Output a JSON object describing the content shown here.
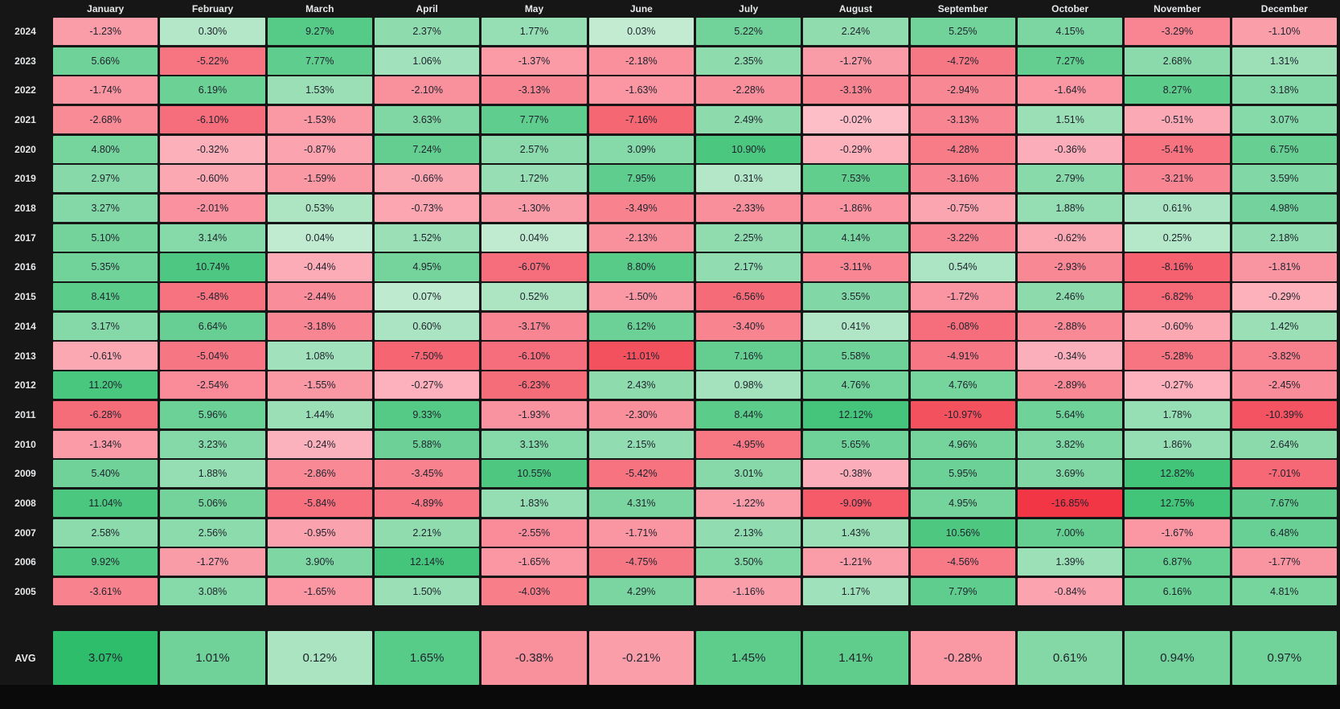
{
  "chart_data": {
    "type": "heatmap",
    "columns": [
      "January",
      "February",
      "March",
      "April",
      "May",
      "June",
      "July",
      "August",
      "September",
      "October",
      "November",
      "December"
    ],
    "rows": [
      {
        "label": "2024",
        "values": [
          "-1.23%",
          "0.30%",
          "9.27%",
          "2.37%",
          "1.77%",
          "0.03%",
          "5.22%",
          "2.24%",
          "5.25%",
          "4.15%",
          "-3.29%",
          "-1.10%"
        ]
      },
      {
        "label": "2023",
        "values": [
          "5.66%",
          "-5.22%",
          "7.77%",
          "1.06%",
          "-1.37%",
          "-2.18%",
          "2.35%",
          "-1.27%",
          "-4.72%",
          "7.27%",
          "2.68%",
          "1.31%"
        ]
      },
      {
        "label": "2022",
        "values": [
          "-1.74%",
          "6.19%",
          "1.53%",
          "-2.10%",
          "-3.13%",
          "-1.63%",
          "-2.28%",
          "-3.13%",
          "-2.94%",
          "-1.64%",
          "8.27%",
          "3.18%"
        ]
      },
      {
        "label": "2021",
        "values": [
          "-2.68%",
          "-6.10%",
          "-1.53%",
          "3.63%",
          "7.77%",
          "-7.16%",
          "2.49%",
          "-0.02%",
          "-3.13%",
          "1.51%",
          "-0.51%",
          "3.07%"
        ]
      },
      {
        "label": "2020",
        "values": [
          "4.80%",
          "-0.32%",
          "-0.87%",
          "7.24%",
          "2.57%",
          "3.09%",
          "10.90%",
          "-0.29%",
          "-4.28%",
          "-0.36%",
          "-5.41%",
          "6.75%"
        ]
      },
      {
        "label": "2019",
        "values": [
          "2.97%",
          "-0.60%",
          "-1.59%",
          "-0.66%",
          "1.72%",
          "7.95%",
          "0.31%",
          "7.53%",
          "-3.16%",
          "2.79%",
          "-3.21%",
          "3.59%"
        ]
      },
      {
        "label": "2018",
        "values": [
          "3.27%",
          "-2.01%",
          "0.53%",
          "-0.73%",
          "-1.30%",
          "-3.49%",
          "-2.33%",
          "-1.86%",
          "-0.75%",
          "1.88%",
          "0.61%",
          "4.98%"
        ]
      },
      {
        "label": "2017",
        "values": [
          "5.10%",
          "3.14%",
          "0.04%",
          "1.52%",
          "0.04%",
          "-2.13%",
          "2.25%",
          "4.14%",
          "-3.22%",
          "-0.62%",
          "0.25%",
          "2.18%"
        ]
      },
      {
        "label": "2016",
        "values": [
          "5.35%",
          "10.74%",
          "-0.44%",
          "4.95%",
          "-6.07%",
          "8.80%",
          "2.17%",
          "-3.11%",
          "0.54%",
          "-2.93%",
          "-8.16%",
          "-1.81%"
        ]
      },
      {
        "label": "2015",
        "values": [
          "8.41%",
          "-5.48%",
          "-2.44%",
          "0.07%",
          "0.52%",
          "-1.50%",
          "-6.56%",
          "3.55%",
          "-1.72%",
          "2.46%",
          "-6.82%",
          "-0.29%"
        ]
      },
      {
        "label": "2014",
        "values": [
          "3.17%",
          "6.64%",
          "-3.18%",
          "0.60%",
          "-3.17%",
          "6.12%",
          "-3.40%",
          "0.41%",
          "-6.08%",
          "-2.88%",
          "-0.60%",
          "1.42%"
        ]
      },
      {
        "label": "2013",
        "values": [
          "-0.61%",
          "-5.04%",
          "1.08%",
          "-7.50%",
          "-6.10%",
          "-11.01%",
          "7.16%",
          "5.58%",
          "-4.91%",
          "-0.34%",
          "-5.28%",
          "-3.82%"
        ]
      },
      {
        "label": "2012",
        "values": [
          "11.20%",
          "-2.54%",
          "-1.55%",
          "-0.27%",
          "-6.23%",
          "2.43%",
          "0.98%",
          "4.76%",
          "4.76%",
          "-2.89%",
          "-0.27%",
          "-2.45%"
        ]
      },
      {
        "label": "2011",
        "values": [
          "-6.28%",
          "5.96%",
          "1.44%",
          "9.33%",
          "-1.93%",
          "-2.30%",
          "8.44%",
          "12.12%",
          "-10.97%",
          "5.64%",
          "1.78%",
          "-10.39%"
        ]
      },
      {
        "label": "2010",
        "values": [
          "-1.34%",
          "3.23%",
          "-0.24%",
          "5.88%",
          "3.13%",
          "2.15%",
          "-4.95%",
          "5.65%",
          "4.96%",
          "3.82%",
          "1.86%",
          "2.64%"
        ]
      },
      {
        "label": "2009",
        "values": [
          "5.40%",
          "1.88%",
          "-2.86%",
          "-3.45%",
          "10.55%",
          "-5.42%",
          "3.01%",
          "-0.38%",
          "5.95%",
          "3.69%",
          "12.82%",
          "-7.01%"
        ]
      },
      {
        "label": "2008",
        "values": [
          "11.04%",
          "5.06%",
          "-5.84%",
          "-4.89%",
          "1.83%",
          "4.31%",
          "-1.22%",
          "-9.09%",
          "4.95%",
          "-16.85%",
          "12.75%",
          "7.67%"
        ]
      },
      {
        "label": "2007",
        "values": [
          "2.58%",
          "2.56%",
          "-0.95%",
          "2.21%",
          "-2.55%",
          "-1.71%",
          "2.13%",
          "1.43%",
          "10.56%",
          "7.00%",
          "-1.67%",
          "6.48%"
        ]
      },
      {
        "label": "2006",
        "values": [
          "9.92%",
          "-1.27%",
          "3.90%",
          "12.14%",
          "-1.65%",
          "-4.75%",
          "3.50%",
          "-1.21%",
          "-4.56%",
          "1.39%",
          "6.87%",
          "-1.77%"
        ]
      },
      {
        "label": "2005",
        "values": [
          "-3.61%",
          "3.08%",
          "-1.65%",
          "1.50%",
          "-4.03%",
          "4.29%",
          "-1.16%",
          "1.17%",
          "7.79%",
          "-0.84%",
          "6.16%",
          "4.81%"
        ]
      }
    ],
    "summary_row": {
      "label": "AVG",
      "values": [
        "3.07%",
        "1.01%",
        "0.12%",
        "1.65%",
        "-0.38%",
        "-0.21%",
        "1.45%",
        "1.41%",
        "-0.28%",
        "0.61%",
        "0.94%",
        "0.97%"
      ]
    },
    "colorscale": {
      "positive_strong": "#2ebe6b",
      "positive_pale": "#c8edd6",
      "negative_strong": "#f23645",
      "negative_pale": "#fdc3cd",
      "background": "#161616",
      "bottom_strip": "#0a0a0a",
      "header_text": "#e6e8ea",
      "cell_text": "#1e222d"
    }
  }
}
